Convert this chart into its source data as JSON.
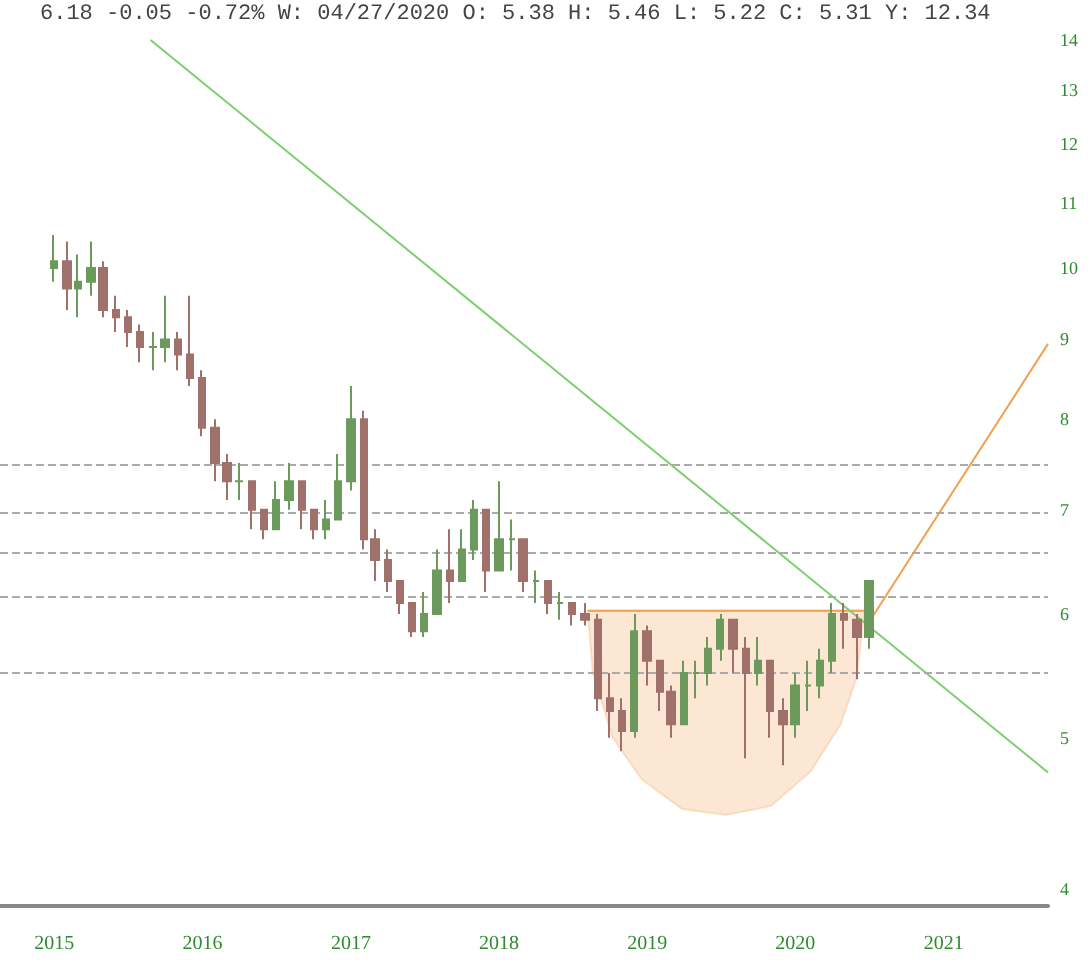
{
  "chart_data": {
    "type": "candlestick",
    "log": true,
    "marker": "none",
    "colors": [
      "#6b9a5c",
      "#a0706a",
      "#6b9a5c",
      "#6b9a5c",
      "#a0706a",
      "#a0706a",
      "#a0706a",
      "#a0706a",
      "#6b9a5c",
      "#6b9a5c",
      "#a0706a",
      "#a0706a",
      "#a0706a",
      "#a0706a",
      "#a0706a",
      "#6b9a5c",
      "#a0706a",
      "#a0706a",
      "#6b9a5c",
      "#6b9a5c",
      "#a0706a",
      "#a0706a",
      "#6b9a5c",
      "#6b9a5c",
      "#6b9a5c",
      "#a0706a",
      "#a0706a",
      "#a0706a",
      "#a0706a",
      "#a0706a",
      "#6b9a5c",
      "#6b9a5c",
      "#a0706a",
      "#6b9a5c",
      "#6b9a5c",
      "#a0706a",
      "#6b9a5c",
      "#6b9a5c",
      "#a0706a",
      "#6b9a5c",
      "#a0706a",
      "#6b9a5c",
      "#a0706a",
      "#a0706a",
      "#a0706a",
      "#a0706a",
      "#a0706a",
      "#6b9a5c",
      "#a0706a",
      "#a0706a",
      "#a0706a",
      "#6b9a5c",
      "#6b9a5c",
      "#6b9a5c",
      "#6b9a5c",
      "#a0706a",
      "#a0706a",
      "#6b9a5c",
      "#a0706a",
      "#a0706a",
      "#6b9a5c",
      "#6b9a5c",
      "#6b9a5c",
      "#6b9a5c",
      "#a0706a",
      "#a0706a",
      "#6b9a5c"
    ],
    "annotations": [
      "6.18 -0.05 -0.72% W: 04/27/2020 O: 5.38 H: 5.46 L: 5.22 C: 5.31 Y: 12.34"
    ],
    "xlim": [
      "2014-08-20",
      "2021-09-15"
    ],
    "xticks": [
      {
        "value": "2015-01-01",
        "label": "2015"
      },
      {
        "value": "2016-01-01",
        "label": "2016"
      },
      {
        "value": "2017-01-01",
        "label": "2017"
      },
      {
        "value": "2018-01-01",
        "label": "2018"
      },
      {
        "value": "2019-01-01",
        "label": "2019"
      },
      {
        "value": "2020-01-01",
        "label": "2020"
      },
      {
        "value": "2021-01-01",
        "label": "2021"
      }
    ],
    "ylim": [
      3.9,
      14
    ],
    "yticks": [
      4,
      5,
      6,
      7,
      8,
      9,
      10,
      11,
      12,
      13,
      14
    ],
    "x": [
      "2015-01",
      "2015-02",
      "2015-03",
      "2015-04",
      "2015-05",
      "2015-06",
      "2015-07",
      "2015-08",
      "2015-09",
      "2015-10",
      "2015-11",
      "2015-12",
      "2016-01",
      "2016-02",
      "2016-03",
      "2016-04",
      "2016-05",
      "2016-06",
      "2016-07",
      "2016-08",
      "2016-09",
      "2016-10",
      "2016-11",
      "2016-12",
      "2017-01",
      "2017-02",
      "2017-03",
      "2017-04",
      "2017-05",
      "2017-06",
      "2017-07",
      "2017-08",
      "2017-09",
      "2017-10",
      "2017-11",
      "2017-12",
      "2018-01",
      "2018-02",
      "2018-03",
      "2018-04",
      "2018-05",
      "2018-06",
      "2018-07",
      "2018-08",
      "2018-09",
      "2018-10",
      "2018-11",
      "2018-12",
      "2019-01",
      "2019-02",
      "2019-03",
      "2019-04",
      "2019-05",
      "2019-06",
      "2019-07",
      "2019-08",
      "2019-09",
      "2019-10",
      "2019-11",
      "2019-12",
      "2020-01",
      "2020-02",
      "2020-03",
      "2020-04",
      "2020-05",
      "2020-06",
      "2020-07"
    ],
    "ohlc": [
      [
        10.0,
        10.5,
        9.8,
        10.1
      ],
      [
        10.1,
        10.4,
        9.4,
        9.7
      ],
      [
        9.7,
        10.2,
        9.3,
        9.8
      ],
      [
        9.8,
        10.4,
        9.6,
        10.0
      ],
      [
        10.0,
        10.1,
        9.3,
        9.4
      ],
      [
        9.4,
        9.6,
        9.1,
        9.3
      ],
      [
        9.3,
        9.4,
        8.9,
        9.1
      ],
      [
        9.1,
        9.2,
        8.7,
        8.9
      ],
      [
        8.9,
        9.1,
        8.6,
        8.9
      ],
      [
        8.9,
        9.6,
        8.7,
        9.0
      ],
      [
        9.0,
        9.1,
        8.6,
        8.8
      ],
      [
        8.8,
        9.6,
        8.4,
        8.5
      ],
      [
        8.5,
        8.6,
        7.8,
        7.9
      ],
      [
        7.9,
        8.0,
        7.3,
        7.5
      ],
      [
        7.5,
        7.6,
        7.1,
        7.3
      ],
      [
        7.3,
        7.5,
        7.1,
        7.3
      ],
      [
        7.3,
        7.3,
        6.8,
        7.0
      ],
      [
        7.0,
        7.0,
        6.7,
        6.8
      ],
      [
        6.8,
        7.3,
        6.8,
        7.1
      ],
      [
        7.1,
        7.5,
        7.0,
        7.3
      ],
      [
        7.3,
        7.3,
        6.8,
        7.0
      ],
      [
        7.0,
        7.0,
        6.7,
        6.8
      ],
      [
        6.8,
        7.1,
        6.7,
        6.9
      ],
      [
        6.9,
        7.6,
        6.9,
        7.3
      ],
      [
        7.3,
        8.4,
        7.2,
        8.0
      ],
      [
        8.0,
        8.1,
        6.6,
        6.7
      ],
      [
        6.7,
        6.8,
        6.3,
        6.5
      ],
      [
        6.5,
        6.6,
        6.2,
        6.3
      ],
      [
        6.3,
        6.3,
        6.0,
        6.1
      ],
      [
        6.1,
        6.1,
        5.8,
        5.85
      ],
      [
        5.85,
        6.2,
        5.8,
        6.0
      ],
      [
        6.0,
        6.6,
        6.0,
        6.4
      ],
      [
        6.4,
        6.8,
        6.1,
        6.3
      ],
      [
        6.3,
        6.8,
        6.3,
        6.6
      ],
      [
        6.6,
        7.1,
        6.5,
        7.0
      ],
      [
        7.0,
        7.0,
        6.2,
        6.4
      ],
      [
        6.4,
        7.3,
        6.4,
        6.7
      ],
      [
        6.7,
        6.9,
        6.4,
        6.7
      ],
      [
        6.7,
        6.7,
        6.2,
        6.3
      ],
      [
        6.3,
        6.4,
        6.1,
        6.3
      ],
      [
        6.3,
        6.3,
        6.0,
        6.1
      ],
      [
        6.1,
        6.2,
        5.95,
        6.1
      ],
      [
        6.1,
        6.1,
        5.9,
        6.0
      ],
      [
        6.0,
        6.1,
        5.9,
        5.95
      ],
      [
        5.95,
        6.0,
        5.2,
        5.3
      ],
      [
        5.3,
        5.5,
        5.0,
        5.2
      ],
      [
        5.2,
        5.3,
        4.9,
        5.05
      ],
      [
        5.05,
        6.0,
        5.0,
        5.85
      ],
      [
        5.85,
        5.9,
        5.4,
        5.6
      ],
      [
        5.6,
        5.6,
        5.2,
        5.35
      ],
      [
        5.35,
        5.4,
        5.0,
        5.1
      ],
      [
        5.1,
        5.6,
        5.1,
        5.5
      ],
      [
        5.5,
        5.6,
        5.3,
        5.5
      ],
      [
        5.5,
        5.8,
        5.4,
        5.7
      ],
      [
        5.7,
        6.0,
        5.6,
        5.95
      ],
      [
        5.95,
        5.95,
        5.5,
        5.7
      ],
      [
        5.7,
        5.8,
        4.85,
        5.5
      ],
      [
        5.5,
        5.8,
        5.4,
        5.6
      ],
      [
        5.6,
        5.6,
        5.0,
        5.2
      ],
      [
        5.2,
        5.3,
        4.8,
        5.1
      ],
      [
        5.1,
        5.5,
        5.0,
        5.4
      ],
      [
        5.4,
        5.6,
        5.2,
        5.4
      ],
      [
        5.4,
        5.7,
        5.3,
        5.6
      ],
      [
        5.6,
        6.1,
        5.5,
        6.0
      ],
      [
        6.0,
        6.1,
        5.7,
        5.95
      ],
      [
        5.95,
        6.0,
        5.45,
        5.8
      ],
      [
        5.8,
        6.3,
        5.7,
        6.3
      ]
    ],
    "ref_lines": [
      {
        "axis": "y",
        "value": 7.48,
        "color": "#aaaaaa",
        "line_style": "dashed"
      },
      {
        "axis": "y",
        "value": 6.98,
        "color": "#aaaaaa",
        "line_style": "dashed"
      },
      {
        "axis": "y",
        "value": 6.58,
        "color": "#aaaaaa",
        "line_style": "dashed"
      },
      {
        "axis": "y",
        "value": 6.15,
        "color": "#aaaaaa",
        "line_style": "dashed"
      },
      {
        "axis": "y",
        "value": 5.5,
        "color": "#aaaaaa",
        "line_style": "dashed"
      }
    ],
    "series": [
      {
        "type": "line",
        "color": "#f0a050",
        "x": [
          "2018-08-07",
          "2018-08-20",
          "2018-10-08",
          "2018-12-19",
          "2019-03-28",
          "2019-07-13",
          "2019-11-02",
          "2020-02-09",
          "2020-04-22",
          "2020-05-31",
          "2020-06-20"
        ],
        "values": [
          6.03,
          6.03,
          6.03,
          6.03,
          6.03,
          6.03,
          6.03,
          6.03,
          6.03,
          6.03,
          6.03
        ],
        "lower": [
          6.03,
          5.5,
          5.0,
          4.7,
          4.5,
          4.46,
          4.52,
          4.76,
          5.1,
          5.46,
          6.03
        ],
        "upper": [
          6.03,
          6.03,
          6.03,
          6.03,
          6.03,
          6.03,
          6.03,
          6.03,
          6.03,
          6.03,
          6.03
        ]
      },
      {
        "type": "line",
        "color": "#7ccf6e",
        "x": [
          "2015-08-26",
          "2021-09-15"
        ],
        "values": [
          14.0,
          4.75
        ]
      },
      {
        "type": "line",
        "color": "#f0a050",
        "x": [
          "2020-06-20",
          "2021-09-15"
        ],
        "values": [
          5.87,
          8.94
        ]
      }
    ]
  }
}
